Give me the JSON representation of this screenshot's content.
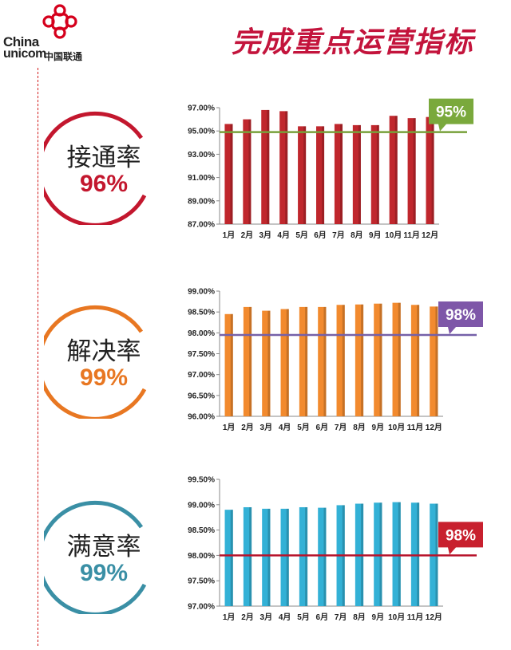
{
  "header": {
    "brand_en_line1": "China",
    "brand_en_line2": "unicom",
    "brand_cn": "中国联通",
    "page_title": "完成重点运营指标"
  },
  "colors": {
    "title": "#c3143c",
    "divider": "#d21a1a"
  },
  "kpis": [
    {
      "label": "接通率",
      "value": "96%",
      "ring_color": "#c3172e"
    },
    {
      "label": "解决率",
      "value": "99%",
      "ring_color": "#e87722"
    },
    {
      "label": "满意率",
      "value": "99%",
      "ring_color": "#3a8fa5"
    }
  ],
  "chart_data": [
    {
      "type": "bar",
      "categories": [
        "1月",
        "2月",
        "3月",
        "4月",
        "5月",
        "6月",
        "7月",
        "8月",
        "9月",
        "10月",
        "11月",
        "12月"
      ],
      "values": [
        95.6,
        96.0,
        96.8,
        96.7,
        95.4,
        95.4,
        95.6,
        95.5,
        95.5,
        96.3,
        96.1,
        96.2
      ],
      "ylim": [
        87.0,
        97.0
      ],
      "ytick_step": 2.0,
      "ytick_labels": [
        "87.00%",
        "89.00%",
        "91.00%",
        "93.00%",
        "95.00%",
        "97.00%"
      ],
      "target": {
        "value": 94.9,
        "label": "95%"
      },
      "bar_color": "#c0272d",
      "line_color": "#77a03a",
      "callout_color": "#7aa93c"
    },
    {
      "type": "bar",
      "categories": [
        "1月",
        "2月",
        "3月",
        "4月",
        "5月",
        "6月",
        "7月",
        "8月",
        "9月",
        "10月",
        "11月",
        "12月"
      ],
      "values": [
        98.45,
        98.62,
        98.53,
        98.57,
        98.62,
        98.62,
        98.67,
        98.68,
        98.7,
        98.72,
        98.67,
        98.63
      ],
      "ylim": [
        96.0,
        99.0
      ],
      "ytick_step": 0.5,
      "ytick_labels": [
        "96.00%",
        "96.50%",
        "97.00%",
        "97.50%",
        "98.00%",
        "98.50%",
        "99.00%"
      ],
      "target": {
        "value": 97.95,
        "label": "98%"
      },
      "bar_color": "#f28a2e",
      "line_color": "#7560a8",
      "callout_color": "#7e57a8"
    },
    {
      "type": "bar",
      "categories": [
        "1月",
        "2月",
        "3月",
        "4月",
        "5月",
        "6月",
        "7月",
        "8月",
        "9月",
        "10月",
        "11月",
        "12月"
      ],
      "values": [
        98.9,
        98.95,
        98.92,
        98.92,
        98.95,
        98.94,
        98.99,
        99.02,
        99.04,
        99.05,
        99.04,
        99.02
      ],
      "ylim": [
        97.0,
        99.5
      ],
      "ytick_step": 0.5,
      "ytick_labels": [
        "97.00%",
        "97.50%",
        "98.00%",
        "98.50%",
        "99.00%",
        "99.50%"
      ],
      "target": {
        "value": 98.0,
        "label": "98%"
      },
      "bar_color": "#33b1d6",
      "line_color": "#b8142c",
      "callout_color": "#c8202e"
    }
  ]
}
